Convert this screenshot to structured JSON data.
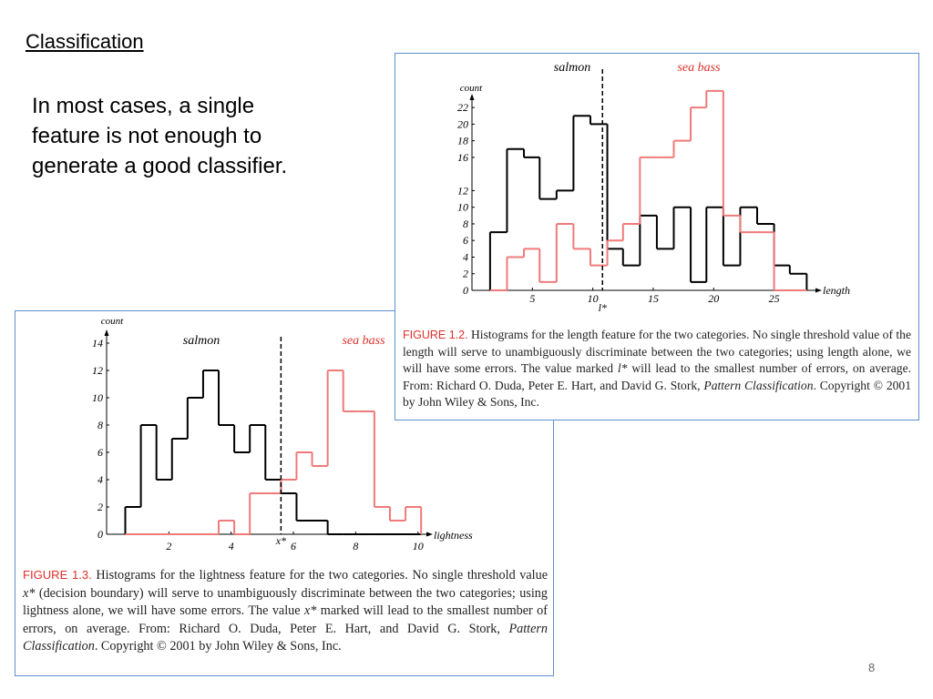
{
  "heading": "Classification",
  "body": "In most cases, a single feature is not enough to generate a good classifier.",
  "page_number": "8",
  "chart_data": [
    {
      "type": "histogram",
      "xlabel": "length",
      "ylabel": "count",
      "bins": [
        1.5,
        2.9,
        4.3,
        5.6,
        7.0,
        8.4,
        9.8,
        11.2,
        12.5,
        13.9,
        15.3,
        16.7,
        18.1,
        19.4,
        20.8,
        22.2,
        23.6,
        25.0,
        26.3,
        27.7
      ],
      "series": [
        {
          "name": "salmon",
          "color": "#000000",
          "values": [
            7,
            17,
            16,
            11,
            12,
            21,
            20,
            5,
            3,
            9,
            5,
            10,
            1,
            10,
            3,
            10,
            8,
            3,
            2
          ]
        },
        {
          "name": "sea bass",
          "color": "#f07a7a",
          "values": [
            0,
            4,
            5,
            1,
            8,
            5,
            3,
            6,
            8,
            16,
            16,
            18,
            22,
            24,
            9,
            7,
            7,
            0,
            0
          ]
        }
      ],
      "threshold": {
        "label": "l*",
        "value": 10.8
      },
      "xlim": [
        0,
        28.5
      ],
      "xticks": [
        5,
        10,
        15,
        20,
        25
      ],
      "ylim": [
        0,
        23
      ],
      "yticks": [
        0,
        2,
        4,
        6,
        8,
        10,
        12,
        16,
        18,
        20,
        22
      ],
      "caption": {
        "label": "FIGURE 1.2.",
        "parts": [
          "Histograms for the length feature for the two categories. No single threshold value of the length will serve to unambiguously discriminate between the two categories; using length alone, we will have some errors. The value marked ",
          "l*",
          " will lead to the smallest number of errors, on average. From: Richard O. Duda, Peter E. Hart, and David G. Stork, ",
          "Pattern Classification",
          ". Copyright © 2001 by John Wiley & Sons, Inc."
        ]
      }
    },
    {
      "type": "histogram",
      "xlabel": "lightness",
      "ylabel": "count",
      "bins": [
        0.6,
        1.1,
        1.6,
        2.1,
        2.6,
        3.1,
        3.6,
        4.1,
        4.6,
        5.1,
        5.6,
        6.1,
        6.6,
        7.1,
        7.6,
        8.1,
        8.6,
        9.1,
        9.6,
        10.1
      ],
      "series": [
        {
          "name": "salmon",
          "color": "#000000",
          "values": [
            2,
            8,
            4,
            7,
            10,
            12,
            8,
            6,
            8,
            4,
            3,
            1,
            1,
            0,
            0,
            0,
            0,
            0,
            0
          ]
        },
        {
          "name": "sea bass",
          "color": "#f07a7a",
          "values": [
            0,
            0,
            0,
            0,
            0,
            0,
            1,
            0,
            3,
            3,
            4,
            6,
            5,
            12,
            9,
            9,
            2,
            1,
            2
          ]
        }
      ],
      "threshold": {
        "label": "x*",
        "value": 5.6
      },
      "xlim": [
        0,
        10.3
      ],
      "xticks": [
        2,
        4,
        6,
        8,
        10
      ],
      "ylim": [
        0,
        14.6
      ],
      "yticks": [
        0,
        2,
        4,
        6,
        8,
        10,
        12,
        14
      ],
      "caption": {
        "label": "FIGURE 1.3.",
        "parts": [
          "Histograms for the lightness feature for the two categories. No single threshold value ",
          "x*",
          " (decision boundary) will serve to unambiguously discriminate between the two categories; using lightness alone, we will have some errors. The value ",
          "x*",
          " marked will lead to the smallest number of errors, on average. From: Richard O. Duda, Peter E. Hart, and David G. Stork, ",
          "Pattern Classification",
          ". Copyright © 2001 by John Wiley & Sons, Inc."
        ]
      }
    }
  ]
}
